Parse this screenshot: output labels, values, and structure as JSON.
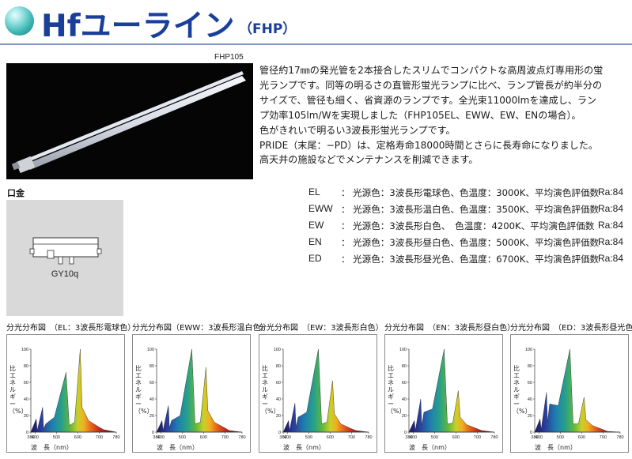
{
  "header": {
    "title": "Hfユーライン",
    "subtitle": "（FHP）"
  },
  "product": {
    "model": "FHP105",
    "base_label": "口金",
    "base_name": "GY10q"
  },
  "description": [
    "管径約17㎜の発光管を2本接合したスリムでコンパクトな高周波点灯専用形の蛍",
    "光ランプです。同等の明るさの直管形蛍光ランプに比べ、ランプ管長が約半分の",
    "サイズで、管径も細く、省資源のランプです。全光束11000lmを達成し、ラン",
    "プ効率105lm/Wを実現しました（FHP105EL、EWW、EW、ENの場合）。",
    "色がきれいで明るい3波長形蛍光ランプです。",
    "PRIDE（末尾：−PD）は、定格寿命18000時間とさらに長寿命になりました。",
    "高天井の施設などでメンテナンスを削減できます。"
  ],
  "specs": [
    {
      "code": "EL",
      "colon": "：",
      "text": "光源色：3波長形電球色、色温度：3000K、平均演色評価数",
      "ra": "Ra:84"
    },
    {
      "code": "EWW",
      "colon": "：",
      "text": "光源色：3波長形温白色、色温度：3500K、平均演色評価数",
      "ra": "Ra:84"
    },
    {
      "code": "EW",
      "colon": "：",
      "text": "光源色：3波長形白色、　色温度：4200K、平均演色評価数",
      "ra": "Ra:84"
    },
    {
      "code": "EN",
      "colon": "：",
      "text": "光源色：3波長形昼白色、色温度：5000K、平均演色評価数",
      "ra": "Ra:84"
    },
    {
      "code": "ED",
      "colon": "：",
      "text": "光源色：3波長形昼光色、色温度：6700K、平均演色評価数",
      "ra": "Ra:84"
    }
  ],
  "chart_data": [
    {
      "type": "area",
      "title": "分光分布図　（EL：3波長形電球色）",
      "ylabel": "比エネルギー（%）",
      "xlabel": "波　長（nm）",
      "xlim": [
        380,
        780
      ],
      "ylim": [
        0,
        100
      ],
      "x_ticks": [
        "380",
        "400",
        "500",
        "600",
        "700",
        "780"
      ],
      "y_ticks": [
        "0",
        "20",
        "40",
        "60",
        "80",
        "100"
      ],
      "x": [
        380,
        405,
        410,
        435,
        440,
        450,
        490,
        545,
        560,
        585,
        611,
        620,
        650,
        700,
        720,
        780
      ],
      "y": [
        0,
        16,
        2,
        30,
        4,
        10,
        18,
        72,
        8,
        12,
        100,
        30,
        14,
        6,
        3,
        0
      ]
    },
    {
      "type": "area",
      "title": "分光分布図（EWW：3波長形温白色）",
      "ylabel": "比エネルギー（%）",
      "xlabel": "波　長（nm）",
      "xlim": [
        380,
        780
      ],
      "ylim": [
        0,
        100
      ],
      "x_ticks": [
        "380",
        "400",
        "500",
        "600",
        "700",
        "780"
      ],
      "y_ticks": [
        "0",
        "20",
        "40",
        "60",
        "80",
        "100"
      ],
      "x": [
        380,
        405,
        410,
        435,
        440,
        450,
        490,
        545,
        560,
        585,
        611,
        620,
        650,
        700,
        720,
        780
      ],
      "y": [
        0,
        14,
        2,
        32,
        5,
        14,
        20,
        100,
        10,
        12,
        78,
        26,
        12,
        5,
        2,
        0
      ]
    },
    {
      "type": "area",
      "title": "分光分布図　（EW：3波長形白色）",
      "ylabel": "比エネルギー（%）",
      "xlabel": "波　長（nm）",
      "xlim": [
        380,
        780
      ],
      "ylim": [
        0,
        100
      ],
      "x_ticks": [
        "380",
        "400",
        "500",
        "600",
        "700",
        "780"
      ],
      "y_ticks": [
        "0",
        "20",
        "40",
        "60",
        "80",
        "100"
      ],
      "x": [
        380,
        405,
        410,
        435,
        440,
        450,
        490,
        545,
        560,
        585,
        611,
        620,
        650,
        700,
        720,
        780
      ],
      "y": [
        0,
        14,
        2,
        35,
        6,
        18,
        24,
        100,
        10,
        12,
        62,
        22,
        10,
        4,
        2,
        0
      ]
    },
    {
      "type": "area",
      "title": "分光分布図　（EN：3波長形昼白色）",
      "ylabel": "比エネルギー（%）",
      "xlabel": "波　長（nm）",
      "xlim": [
        380,
        780
      ],
      "ylim": [
        0,
        100
      ],
      "x_ticks": [
        "380",
        "400",
        "500",
        "600",
        "700",
        "780"
      ],
      "y_ticks": [
        "0",
        "20",
        "40",
        "60",
        "80",
        "100"
      ],
      "x": [
        380,
        405,
        410,
        435,
        440,
        450,
        490,
        545,
        560,
        585,
        611,
        620,
        650,
        700,
        720,
        780
      ],
      "y": [
        0,
        14,
        2,
        40,
        8,
        24,
        28,
        100,
        10,
        11,
        50,
        18,
        9,
        4,
        2,
        0
      ]
    },
    {
      "type": "area",
      "title": "分光分布図　（ED：3波長形昼光色）",
      "ylabel": "比エネルギー（%）",
      "xlabel": "波　長（nm）",
      "xlim": [
        380,
        780
      ],
      "ylim": [
        0,
        100
      ],
      "x_ticks": [
        "380",
        "400",
        "500",
        "600",
        "700",
        "780"
      ],
      "y_ticks": [
        "0",
        "20",
        "40",
        "60",
        "80",
        "100"
      ],
      "x": [
        380,
        405,
        410,
        435,
        440,
        450,
        490,
        545,
        560,
        585,
        611,
        620,
        650,
        700,
        720,
        780
      ],
      "y": [
        0,
        16,
        3,
        48,
        12,
        34,
        32,
        100,
        10,
        10,
        42,
        15,
        8,
        3,
        1,
        0
      ]
    }
  ]
}
